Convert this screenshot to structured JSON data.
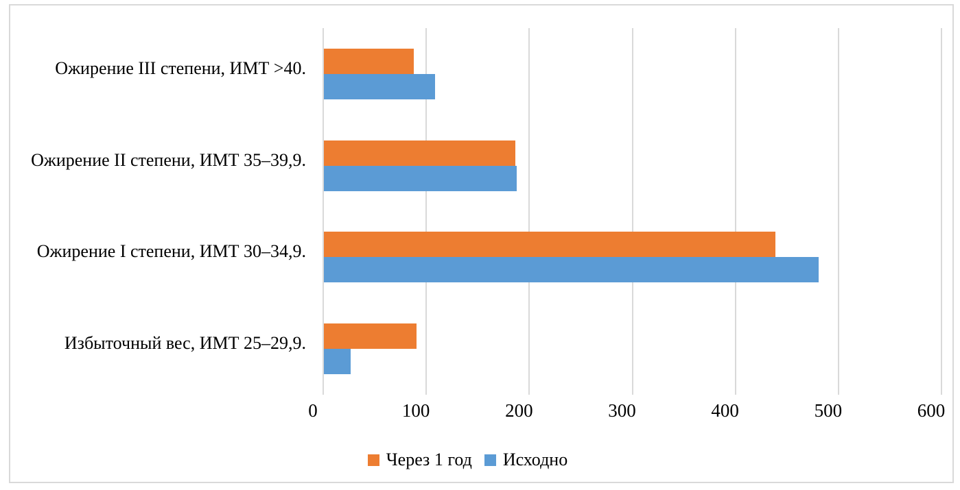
{
  "chart_data": {
    "type": "bar",
    "orientation": "horizontal",
    "title": "",
    "categories": [
      "Ожирение III степени, ИМТ >40.",
      "Ожирение II степени, ИМТ 35–39,9.",
      "Ожирение I степени, ИМТ 30–34,9.",
      "Избыточный вес, ИМТ 25–29,9."
    ],
    "series": [
      {
        "name": "Через 1 год",
        "color": "#ED7D31",
        "values": [
          87,
          186,
          438,
          90
        ]
      },
      {
        "name": "Исходно",
        "color": "#5B9BD5",
        "values": [
          108,
          187,
          480,
          26
        ]
      }
    ],
    "xlabel": "",
    "ylabel": "",
    "xlim": [
      0,
      600
    ],
    "x_ticks": [
      0,
      100,
      200,
      300,
      400,
      500,
      600
    ],
    "grid": "vertical",
    "legend_position": "bottom",
    "colors": {
      "gridline": "#D9D9D9",
      "frame_border": "#D9D9D9",
      "text": "#000000",
      "background": "#FFFFFF"
    }
  }
}
